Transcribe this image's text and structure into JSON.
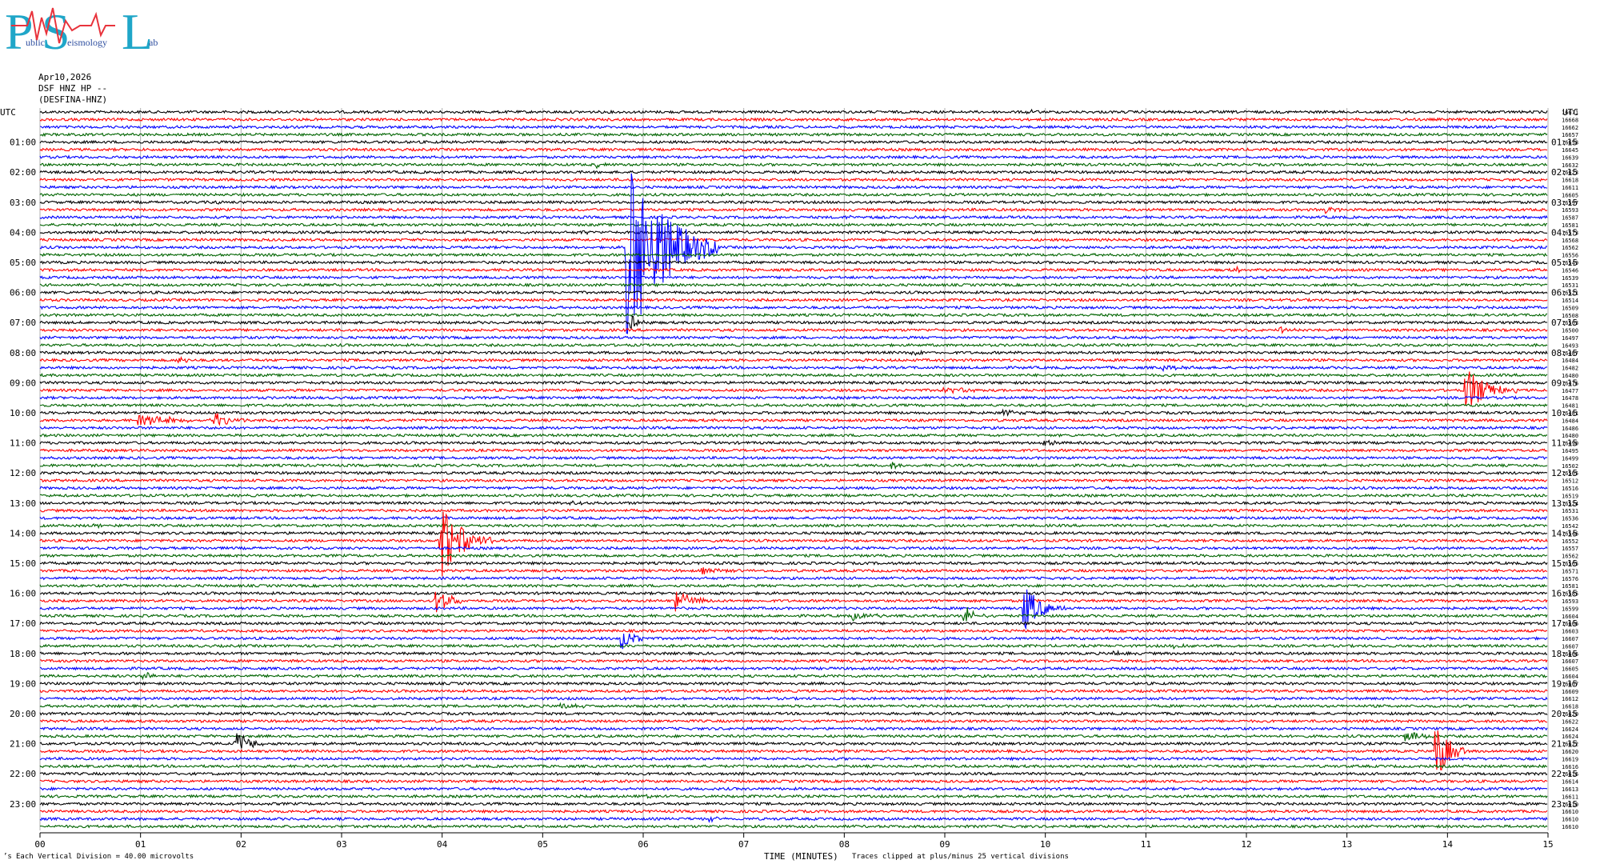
{
  "logo": {
    "big_letters": [
      "P",
      "S",
      "L"
    ],
    "small_text": [
      "ublic",
      "eismology",
      "ab"
    ]
  },
  "header": {
    "date": "Apr10,2026",
    "station": "DSF HNZ HP --",
    "channel": "(DESFINA-HNZ)"
  },
  "labels": {
    "utc_left": "UTC",
    "utc_right": "UTC",
    "x_title": "TIME (MINUTES)",
    "clip_note": "Traces clipped at plus/minus 25 vertical divisions",
    "division_note": "Each Vertical Division =   40.00 microvolts",
    "corner_mark": "’s"
  },
  "colors": {
    "trace_cycle": [
      "#000000",
      "#ff0000",
      "#0000ff",
      "#006400"
    ],
    "grid": "#b0b0b0",
    "logo": "#1fa6c8"
  },
  "chart_data": {
    "type": "line",
    "chart_kind": "helicorder",
    "xlim": [
      0,
      15
    ],
    "x_ticks": [
      "00",
      "01",
      "02",
      "03",
      "04",
      "05",
      "06",
      "07",
      "08",
      "09",
      "10",
      "11",
      "12",
      "13",
      "14",
      "15"
    ],
    "left_time_labels": [
      "01:00",
      "02:00",
      "03:00",
      "04:00",
      "05:00",
      "06:00",
      "07:00",
      "08:00",
      "09:00",
      "10:00",
      "11:00",
      "12:00",
      "13:00",
      "14:00",
      "15:00",
      "16:00",
      "17:00",
      "18:00",
      "19:00",
      "20:00",
      "21:00",
      "22:00",
      "23:00"
    ],
    "right_time_labels": [
      "01:15",
      "02:15",
      "03:15",
      "04:15",
      "05:15",
      "06:15",
      "07:15",
      "08:15",
      "09:15",
      "10:15",
      "11:15",
      "12:15",
      "13:15",
      "14:15",
      "15:15",
      "16:15",
      "17:15",
      "18:15",
      "19:15",
      "20:15",
      "21:15",
      "22:15",
      "23:15"
    ],
    "trace_minutes": 15,
    "traces_per_hour": 4,
    "trace_count": 96,
    "offsets": [
      16671,
      16668,
      16662,
      16657,
      16658,
      16645,
      16639,
      16632,
      16623,
      16618,
      16611,
      16605,
      16597,
      16593,
      16587,
      16581,
      16573,
      16568,
      16562,
      16556,
      16549,
      16546,
      16539,
      16531,
      16521,
      16514,
      16509,
      16508,
      16503,
      16500,
      16497,
      16493,
      16487,
      16484,
      16482,
      16480,
      16476,
      16477,
      16478,
      16481,
      16481,
      16484,
      16486,
      16480,
      16490,
      16495,
      16499,
      16502,
      16505,
      16512,
      16516,
      16519,
      16524,
      16531,
      16536,
      16542,
      16546,
      16552,
      16557,
      16562,
      16565,
      16571,
      16576,
      16581,
      16585,
      16593,
      16599,
      16604,
      16606,
      16603,
      16607,
      16607,
      16606,
      16607,
      16605,
      16604,
      16607,
      16609,
      16612,
      16618,
      16620,
      16622,
      16624,
      16624,
      16622,
      16620,
      16619,
      16616,
      16616,
      16614,
      16613,
      16611,
      16610,
      16610,
      16610,
      16610
    ],
    "events": [
      {
        "trace": 0,
        "minute": 9.82,
        "amp": 1.0,
        "dur": 0.12
      },
      {
        "trace": 7,
        "minute": 5.55,
        "amp": 0.8,
        "dur": 0.1
      },
      {
        "trace": 12,
        "minute": 1.75,
        "amp": 0.5,
        "dur": 0.1
      },
      {
        "trace": 13,
        "minute": 12.8,
        "amp": 1.0,
        "dur": 0.2
      },
      {
        "trace": 14,
        "minute": 8.0,
        "amp": 0.5,
        "dur": 0.3
      },
      {
        "trace": 16,
        "minute": 0.75,
        "amp": 0.6,
        "dur": 0.08
      },
      {
        "trace": 16,
        "minute": 5.4,
        "amp": 0.7,
        "dur": 0.12
      },
      {
        "trace": 18,
        "minute": 13.4,
        "amp": 0.4,
        "dur": 0.2
      },
      {
        "trace": 21,
        "minute": 11.9,
        "amp": 0.6,
        "dur": 0.2
      },
      {
        "trace": 18,
        "minute": 5.85,
        "amp": 28.0,
        "dur": 0.9
      },
      {
        "trace": 28,
        "minute": 5.9,
        "amp": 2.0,
        "dur": 0.2
      },
      {
        "trace": 29,
        "minute": 12.35,
        "amp": 1.0,
        "dur": 0.15
      },
      {
        "trace": 30,
        "minute": 12.8,
        "amp": 0.5,
        "dur": 0.15
      },
      {
        "trace": 33,
        "minute": 1.4,
        "amp": 1.0,
        "dur": 0.15
      },
      {
        "trace": 32,
        "minute": 8.7,
        "amp": 0.7,
        "dur": 0.2
      },
      {
        "trace": 34,
        "minute": 11.2,
        "amp": 0.6,
        "dur": 0.4
      },
      {
        "trace": 37,
        "minute": 9.0,
        "amp": 0.8,
        "dur": 0.8
      },
      {
        "trace": 37,
        "minute": 14.2,
        "amp": 6.0,
        "dur": 0.5
      },
      {
        "trace": 41,
        "minute": 1.0,
        "amp": 1.4,
        "dur": 1.2
      },
      {
        "trace": 41,
        "minute": 1.75,
        "amp": 1.6,
        "dur": 0.3
      },
      {
        "trace": 40,
        "minute": 9.6,
        "amp": 0.6,
        "dur": 0.4
      },
      {
        "trace": 44,
        "minute": 10.0,
        "amp": 1.0,
        "dur": 0.2
      },
      {
        "trace": 47,
        "minute": 8.5,
        "amp": 1.0,
        "dur": 0.15
      },
      {
        "trace": 52,
        "minute": 5.3,
        "amp": 0.8,
        "dur": 0.2
      },
      {
        "trace": 55,
        "minute": 0.55,
        "amp": 0.8,
        "dur": 0.15
      },
      {
        "trace": 57,
        "minute": 4.0,
        "amp": 10.0,
        "dur": 0.5
      },
      {
        "trace": 61,
        "minute": 6.6,
        "amp": 0.7,
        "dur": 0.4
      },
      {
        "trace": 65,
        "minute": 3.95,
        "amp": 4.0,
        "dur": 0.3
      },
      {
        "trace": 65,
        "minute": 6.35,
        "amp": 3.0,
        "dur": 0.35
      },
      {
        "trace": 66,
        "minute": 9.8,
        "amp": 6.0,
        "dur": 0.4
      },
      {
        "trace": 67,
        "minute": 8.1,
        "amp": 1.0,
        "dur": 0.4
      },
      {
        "trace": 67,
        "minute": 9.2,
        "amp": 2.5,
        "dur": 0.3
      },
      {
        "trace": 70,
        "minute": 5.8,
        "amp": 3.0,
        "dur": 0.25
      },
      {
        "trace": 71,
        "minute": 11.3,
        "amp": 0.8,
        "dur": 0.3
      },
      {
        "trace": 72,
        "minute": 10.7,
        "amp": 0.8,
        "dur": 0.2
      },
      {
        "trace": 75,
        "minute": 1.05,
        "amp": 1.0,
        "dur": 0.2
      },
      {
        "trace": 79,
        "minute": 5.2,
        "amp": 0.8,
        "dur": 0.4
      },
      {
        "trace": 83,
        "minute": 13.6,
        "amp": 1.5,
        "dur": 0.4
      },
      {
        "trace": 84,
        "minute": 1.95,
        "amp": 3.5,
        "dur": 0.35
      },
      {
        "trace": 85,
        "minute": 13.9,
        "amp": 8.0,
        "dur": 0.3
      },
      {
        "trace": 91,
        "minute": 6.05,
        "amp": 0.6,
        "dur": 0.15
      },
      {
        "trace": 94,
        "minute": 6.65,
        "amp": 0.6,
        "dur": 0.3
      }
    ]
  }
}
